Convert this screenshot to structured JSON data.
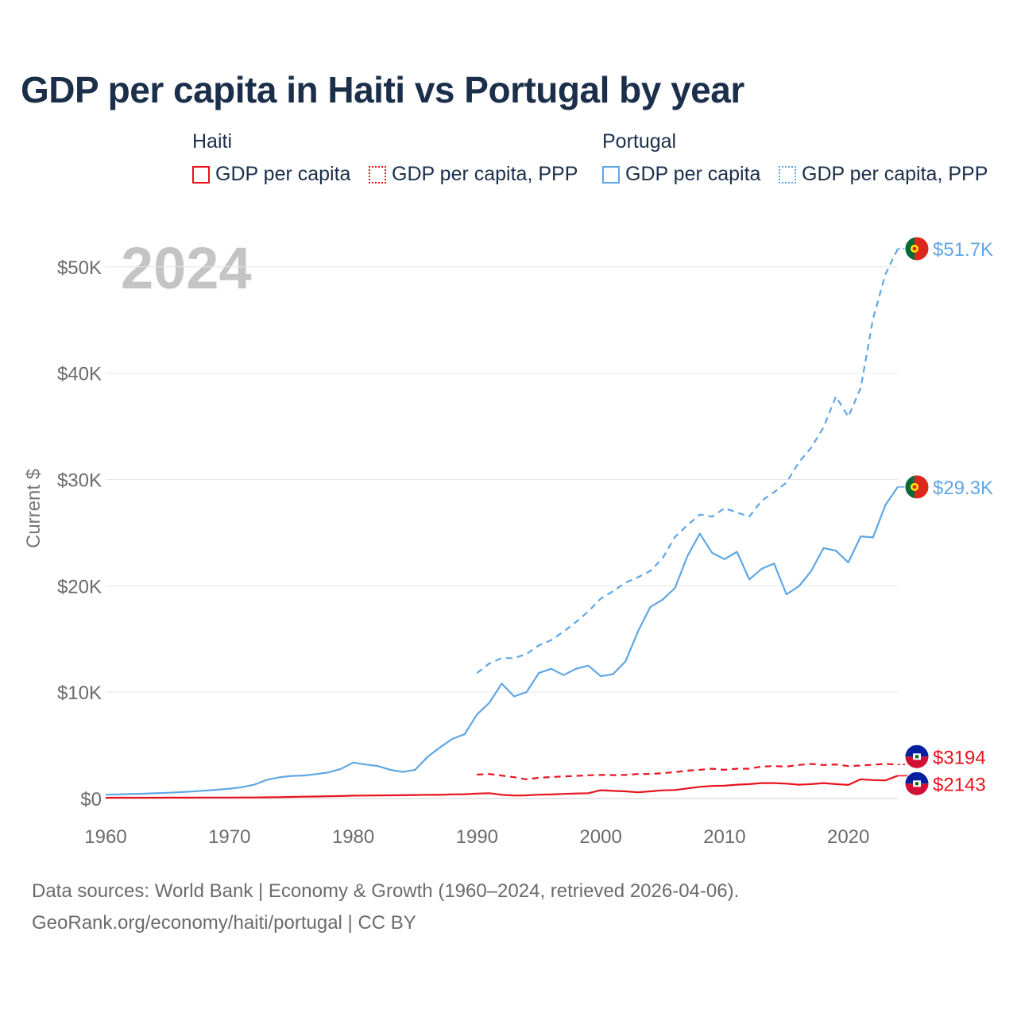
{
  "title": "GDP per capita in Haiti vs Portugal by year",
  "legend": {
    "groups": [
      {
        "name": "Haiti",
        "color": "#e8121c",
        "items": [
          {
            "label": "GDP per capita",
            "style": "solid"
          },
          {
            "label": "GDP per capita, PPP",
            "style": "dotted"
          }
        ]
      },
      {
        "name": "Portugal",
        "color": "#5fa6e3",
        "items": [
          {
            "label": "GDP per capita",
            "style": "solid"
          },
          {
            "label": "GDP per capita, PPP",
            "style": "dotted"
          }
        ]
      }
    ]
  },
  "year_overlay": "2024",
  "footer": {
    "line1": "Data sources: World Bank | Economy & Growth (1960–2024, retrieved 2026-04-06).",
    "line2": "GeoRank.org/economy/haiti/portugal | CC BY"
  },
  "chart_data": {
    "type": "line",
    "ylabel": "Current $",
    "xlabel": "",
    "xlim": [
      1960,
      2024
    ],
    "ylim": [
      0,
      52000
    ],
    "x_ticks": [
      1960,
      1970,
      1980,
      1990,
      2000,
      2010,
      2020
    ],
    "x_tick_labels": [
      "1960",
      "1970",
      "1980",
      "1990",
      "2000",
      "2010",
      "2020"
    ],
    "y_ticks": [
      0,
      10000,
      20000,
      30000,
      40000,
      50000
    ],
    "y_tick_labels": [
      "$0",
      "$10K",
      "$20K",
      "$30K",
      "$40K",
      "$50K"
    ],
    "grid": true,
    "series": [
      {
        "name": "Portugal GDP per capita",
        "country": "Portugal",
        "color": "#5fa6e3",
        "style": "solid",
        "end_label": "$29.3K",
        "flag": "portugal",
        "x": [
          1960,
          1961,
          1962,
          1963,
          1964,
          1965,
          1966,
          1967,
          1968,
          1969,
          1970,
          1971,
          1972,
          1973,
          1974,
          1975,
          1976,
          1977,
          1978,
          1979,
          1980,
          1981,
          1982,
          1983,
          1984,
          1985,
          1986,
          1987,
          1988,
          1989,
          1990,
          1991,
          1992,
          1993,
          1994,
          1995,
          1996,
          1997,
          1998,
          1999,
          2000,
          2001,
          2002,
          2003,
          2004,
          2005,
          2006,
          2007,
          2008,
          2009,
          2010,
          2011,
          2012,
          2013,
          2014,
          2015,
          2016,
          2017,
          2018,
          2019,
          2020,
          2021,
          2022,
          2023,
          2024
        ],
        "values": [
          360,
          390,
          420,
          450,
          490,
          540,
          600,
          660,
          740,
          820,
          930,
          1060,
          1300,
          1750,
          1990,
          2120,
          2160,
          2290,
          2450,
          2780,
          3380,
          3200,
          3050,
          2700,
          2500,
          2700,
          3900,
          4800,
          5600,
          6050,
          7900,
          9000,
          10800,
          9600,
          10000,
          11800,
          12200,
          11600,
          12200,
          12500,
          11500,
          11700,
          12900,
          15700,
          18000,
          18700,
          19800,
          22800,
          24900,
          23100,
          22500,
          23200,
          20600,
          21600,
          22100,
          19200,
          19950,
          21400,
          23550,
          23300,
          22200,
          24650,
          24550,
          27600,
          29300
        ]
      },
      {
        "name": "Portugal GDP per capita, PPP",
        "country": "Portugal",
        "color": "#5fa6e3",
        "style": "dashed",
        "end_label": "$51.7K",
        "flag": "portugal",
        "x": [
          1990,
          1991,
          1992,
          1993,
          1994,
          1995,
          1996,
          1997,
          1998,
          1999,
          2000,
          2001,
          2002,
          2003,
          2004,
          2005,
          2006,
          2007,
          2008,
          2009,
          2010,
          2011,
          2012,
          2013,
          2014,
          2015,
          2016,
          2017,
          2018,
          2019,
          2020,
          2021,
          2022,
          2023,
          2024
        ],
        "values": [
          11800,
          12700,
          13200,
          13200,
          13600,
          14400,
          14900,
          15700,
          16600,
          17600,
          18800,
          19500,
          20300,
          20800,
          21400,
          22600,
          24600,
          25700,
          26700,
          26500,
          27300,
          26900,
          26500,
          28000,
          28800,
          29700,
          31600,
          33000,
          34900,
          37800,
          35900,
          38600,
          45100,
          49300,
          51700
        ]
      },
      {
        "name": "Haiti GDP per capita, PPP",
        "country": "Haiti",
        "color": "#e8121c",
        "style": "dashed",
        "end_label": "$3194",
        "flag": "haiti",
        "x": [
          1990,
          1991,
          1992,
          1993,
          1994,
          1995,
          1996,
          1997,
          1998,
          1999,
          2000,
          2001,
          2002,
          2003,
          2004,
          2005,
          2006,
          2007,
          2008,
          2009,
          2010,
          2011,
          2012,
          2013,
          2014,
          2015,
          2016,
          2017,
          2018,
          2019,
          2020,
          2021,
          2022,
          2023,
          2024
        ],
        "values": [
          2250,
          2300,
          2150,
          2000,
          1800,
          1950,
          2020,
          2080,
          2120,
          2180,
          2220,
          2200,
          2220,
          2300,
          2300,
          2380,
          2480,
          2620,
          2700,
          2800,
          2700,
          2800,
          2800,
          3000,
          3050,
          3000,
          3150,
          3250,
          3150,
          3200,
          3050,
          3100,
          3180,
          3250,
          3194
        ]
      },
      {
        "name": "Haiti GDP per capita",
        "country": "Haiti",
        "color": "#e8121c",
        "style": "solid",
        "end_label": "$2143",
        "flag": "haiti",
        "x": [
          1960,
          1961,
          1962,
          1963,
          1964,
          1965,
          1966,
          1967,
          1968,
          1969,
          1970,
          1971,
          1972,
          1973,
          1974,
          1975,
          1976,
          1977,
          1978,
          1979,
          1980,
          1981,
          1982,
          1983,
          1984,
          1985,
          1986,
          1987,
          1988,
          1989,
          1990,
          1991,
          1992,
          1993,
          1994,
          1995,
          1996,
          1997,
          1998,
          1999,
          2000,
          2001,
          2002,
          2003,
          2004,
          2005,
          2006,
          2007,
          2008,
          2009,
          2010,
          2011,
          2012,
          2013,
          2014,
          2015,
          2016,
          2017,
          2018,
          2019,
          2020,
          2021,
          2022,
          2023,
          2024
        ],
        "values": [
          70,
          72,
          74,
          76,
          78,
          80,
          82,
          84,
          86,
          88,
          90,
          95,
          100,
          110,
          130,
          150,
          170,
          190,
          210,
          230,
          270,
          280,
          290,
          300,
          310,
          330,
          350,
          340,
          390,
          400,
          460,
          500,
          350,
          280,
          300,
          360,
          380,
          430,
          470,
          500,
          780,
          720,
          670,
          580,
          670,
          770,
          800,
          950,
          1100,
          1180,
          1200,
          1300,
          1350,
          1450,
          1450,
          1400,
          1300,
          1350,
          1450,
          1350,
          1280,
          1810,
          1730,
          1700,
          2143
        ]
      }
    ]
  }
}
